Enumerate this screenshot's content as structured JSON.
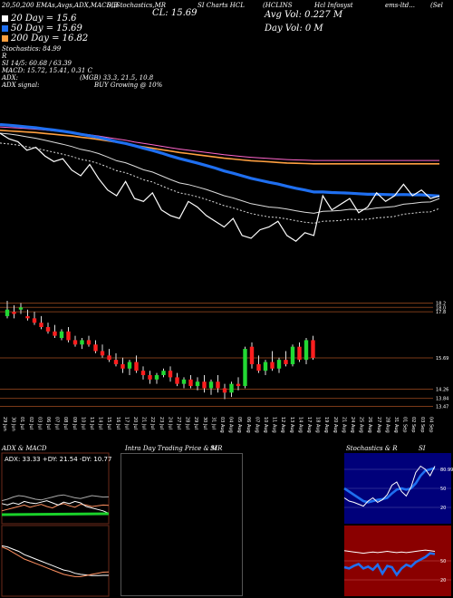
{
  "header": {
    "line1": [
      "20,50,200 EMAs,Avgs,ADX,MACD,B",
      "SI,Stochastics,MR",
      "CL: 15.69",
      "SI Charts HCL",
      "(HCLINS",
      "Avg Vol: 0.227 M",
      "Hcl Infosyst",
      "ems-ltd...",
      "(Sel"
    ],
    "ema20": "20  Day = 15.6",
    "ema50": "50  Day = 15.69",
    "ema200": "200  Day = 16.82",
    "day_vol": "Day Vol: 0  M",
    "stoch": "Stochastics: 84.99",
    "r_label": "R",
    "si": "SI 14/5: 60.68 / 63.39",
    "macd": "MACD: 15.72, 15.41, 0.31 C",
    "adx": "ADX:",
    "adx_vals": "(MGB) 33.3, 21.5, 10.8",
    "adx_signal": "ADX  signal:",
    "buy": "BUY Growing @ 10%"
  },
  "colors": {
    "ema20": "#ffffff",
    "ema50": "#1f6ff0",
    "ema200": "#ffa040",
    "up": "#22d933",
    "down": "#ff1e1e"
  },
  "price_chart": {
    "close": [
      17.9,
      17.7,
      17.6,
      17.3,
      17.4,
      17.1,
      16.9,
      17.0,
      16.6,
      16.4,
      16.8,
      16.3,
      15.9,
      15.7,
      16.2,
      15.6,
      15.5,
      15.8,
      15.2,
      15.0,
      14.9,
      15.5,
      15.3,
      15.0,
      14.8,
      14.6,
      14.9,
      14.3,
      14.2,
      14.5,
      14.6,
      14.8,
      14.3,
      14.1,
      14.4,
      14.3,
      15.7,
      15.2,
      15.4,
      15.6,
      15.1,
      15.3,
      15.8,
      15.5,
      15.7,
      16.1,
      15.7,
      15.9,
      15.6,
      15.69
    ],
    "ema20": [
      17.9,
      17.87,
      17.83,
      17.77,
      17.72,
      17.65,
      17.58,
      17.51,
      17.43,
      17.33,
      17.27,
      17.18,
      17.06,
      16.93,
      16.86,
      16.74,
      16.61,
      16.53,
      16.4,
      16.27,
      16.15,
      16.09,
      16.01,
      15.92,
      15.81,
      15.7,
      15.62,
      15.52,
      15.42,
      15.36,
      15.3,
      15.28,
      15.23,
      15.17,
      15.12,
      15.08,
      15.15,
      15.16,
      15.18,
      15.22,
      15.21,
      15.22,
      15.27,
      15.29,
      15.32,
      15.4,
      15.43,
      15.47,
      15.48,
      15.6
    ],
    "ema50": [
      18.2,
      18.18,
      18.15,
      18.12,
      18.09,
      18.05,
      18.01,
      17.97,
      17.92,
      17.86,
      17.81,
      17.75,
      17.68,
      17.6,
      17.54,
      17.46,
      17.37,
      17.29,
      17.2,
      17.1,
      17.01,
      16.93,
      16.85,
      16.76,
      16.67,
      16.57,
      16.49,
      16.4,
      16.31,
      16.24,
      16.17,
      16.11,
      16.03,
      15.96,
      15.9,
      15.83,
      15.83,
      15.81,
      15.8,
      15.79,
      15.77,
      15.75,
      15.75,
      15.74,
      15.73,
      15.74,
      15.73,
      15.73,
      15.71,
      15.69
    ],
    "ema200": [
      18.0,
      17.98,
      17.96,
      17.94,
      17.92,
      17.89,
      17.86,
      17.83,
      17.8,
      17.76,
      17.72,
      17.68,
      17.63,
      17.58,
      17.53,
      17.47,
      17.42,
      17.37,
      17.32,
      17.27,
      17.22,
      17.18,
      17.14,
      17.1,
      17.06,
      17.02,
      16.99,
      16.96,
      16.93,
      16.91,
      16.89,
      16.87,
      16.85,
      16.84,
      16.83,
      16.82,
      16.82,
      16.82,
      16.82,
      16.82,
      16.82,
      16.82,
      16.82,
      16.82,
      16.82,
      16.82,
      16.82,
      16.82,
      16.82,
      16.82
    ],
    "ylim": [
      13.5,
      18.6
    ]
  },
  "candles": {
    "tick_labels": [
      "18.2",
      "18.0",
      "17.8",
      "15.69",
      "14.26",
      "13.84",
      "13.47"
    ],
    "tick_values": [
      18.2,
      18.0,
      17.8,
      15.69,
      14.26,
      13.84,
      13.47
    ],
    "ylim": [
      13.2,
      18.8
    ],
    "ohlc": [
      [
        17.6,
        18.3,
        17.5,
        17.9
      ],
      [
        17.8,
        18.1,
        17.5,
        17.7
      ],
      [
        17.9,
        18.2,
        17.7,
        18.0
      ],
      [
        17.6,
        17.9,
        17.4,
        17.5
      ],
      [
        17.5,
        17.8,
        17.2,
        17.3
      ],
      [
        17.3,
        17.6,
        17.0,
        17.1
      ],
      [
        17.1,
        17.3,
        16.8,
        16.9
      ],
      [
        16.9,
        17.2,
        16.6,
        16.7
      ],
      [
        16.6,
        17.0,
        16.5,
        16.9
      ],
      [
        16.9,
        17.1,
        16.4,
        16.5
      ],
      [
        16.5,
        16.7,
        16.2,
        16.3
      ],
      [
        16.3,
        16.6,
        16.1,
        16.5
      ],
      [
        16.5,
        16.7,
        16.2,
        16.3
      ],
      [
        16.3,
        16.5,
        15.9,
        16.0
      ],
      [
        16.0,
        16.3,
        15.7,
        15.8
      ],
      [
        15.8,
        16.1,
        15.5,
        15.6
      ],
      [
        15.6,
        15.9,
        15.3,
        15.4
      ],
      [
        15.4,
        15.7,
        15.0,
        15.2
      ],
      [
        15.2,
        15.6,
        14.9,
        15.5
      ],
      [
        15.5,
        15.8,
        15.0,
        15.1
      ],
      [
        15.1,
        15.3,
        14.7,
        14.9
      ],
      [
        14.9,
        15.1,
        14.5,
        14.7
      ],
      [
        14.7,
        15.0,
        14.5,
        14.9
      ],
      [
        14.9,
        15.2,
        14.8,
        15.1
      ],
      [
        15.1,
        15.3,
        14.6,
        14.8
      ],
      [
        14.8,
        15.0,
        14.4,
        14.5
      ],
      [
        14.5,
        14.8,
        14.3,
        14.7
      ],
      [
        14.7,
        14.9,
        14.3,
        14.4
      ],
      [
        14.4,
        14.8,
        14.2,
        14.6
      ],
      [
        14.6,
        14.9,
        14.1,
        14.3
      ],
      [
        14.3,
        14.7,
        14.0,
        14.6
      ],
      [
        14.6,
        14.9,
        14.1,
        14.3
      ],
      [
        14.3,
        14.5,
        13.8,
        14.1
      ],
      [
        14.1,
        14.6,
        13.9,
        14.5
      ],
      [
        14.5,
        14.8,
        14.2,
        14.4
      ],
      [
        14.4,
        16.2,
        14.3,
        16.1
      ],
      [
        16.2,
        16.4,
        15.2,
        15.4
      ],
      [
        15.4,
        15.8,
        15.0,
        15.1
      ],
      [
        15.1,
        15.6,
        14.9,
        15.5
      ],
      [
        15.5,
        16.0,
        15.1,
        15.2
      ],
      [
        15.2,
        15.7,
        15.0,
        15.6
      ],
      [
        15.6,
        16.0,
        15.3,
        15.4
      ],
      [
        15.4,
        16.3,
        15.3,
        16.2
      ],
      [
        16.2,
        16.4,
        15.5,
        15.6
      ],
      [
        15.6,
        16.6,
        15.4,
        16.5
      ],
      [
        16.5,
        16.7,
        15.6,
        15.69
      ]
    ]
  },
  "dates": [
    "29 Jun",
    "30 Jun",
    "01 Jul",
    "02 Jul",
    "03 Jul",
    "06 Jul",
    "07 Jul",
    "08 Jul",
    "09 Jul",
    "10 Jul",
    "13 Jul",
    "14 Jul",
    "15 Jul",
    "16 Jul",
    "17 Jul",
    "20 Jul",
    "21 Jul",
    "22 Jul",
    "23 Jul",
    "24 Jul",
    "27 Jul",
    "28 Jul",
    "29 Jul",
    "30 Jul",
    "31 Jul",
    "03 Aug",
    "04 Aug",
    "05 Aug",
    "06 Aug",
    "07 Aug",
    "10 Aug",
    "11 Aug",
    "12 Aug",
    "13 Aug",
    "14 Aug",
    "17 Aug",
    "18 Aug",
    "19 Aug",
    "20 Aug",
    "21 Aug",
    "24 Aug",
    "25 Aug",
    "26 Aug",
    "27 Aug",
    "28 Aug",
    "31 Aug",
    "01 Sep",
    "02 Sep",
    "03 Sep",
    "04 Sep"
  ],
  "panels": {
    "adx": {
      "title": "ADX  & MACD",
      "vals": "ADX: 33.33  +DY: 21.54  -DY: 10.77",
      "adx_line": [
        28,
        30,
        33,
        35,
        34,
        32,
        30,
        29,
        31,
        33,
        35,
        36,
        34,
        32,
        31,
        33,
        35,
        34,
        33,
        33.3
      ],
      "pdi": [
        14,
        16,
        18,
        20,
        22,
        19,
        21,
        23,
        20,
        18,
        22,
        24,
        21,
        19,
        23,
        22,
        20,
        21,
        22,
        21.5
      ],
      "mdi": [
        24,
        22,
        25,
        23,
        27,
        25,
        24,
        26,
        28,
        25,
        22,
        26,
        24,
        27,
        25,
        20,
        18,
        16,
        14,
        10.8
      ]
    },
    "macd": {
      "line": [
        18,
        17.8,
        17.5,
        17.2,
        16.9,
        16.7,
        16.5,
        16.3,
        16.1,
        15.9,
        15.7,
        15.5,
        15.4,
        15.3,
        15.3,
        15.4,
        15.5,
        15.6,
        15.7,
        15.72
      ],
      "signal": [
        18.1,
        18.0,
        17.8,
        17.6,
        17.3,
        17.1,
        16.9,
        16.7,
        16.5,
        16.3,
        16.1,
        15.9,
        15.8,
        15.6,
        15.5,
        15.45,
        15.4,
        15.4,
        15.41,
        15.41
      ]
    },
    "intraday": {
      "title_left": "Intra  Day Trading Price  & MR",
      "title_right": "SI"
    },
    "stoch": {
      "title_left": "Stochastics & R",
      "title_right": "SI",
      "labels": [
        "80.99",
        "50",
        "20"
      ],
      "k": [
        35,
        30,
        28,
        25,
        22,
        30,
        35,
        28,
        32,
        40,
        55,
        60,
        45,
        38,
        52,
        75,
        85,
        80,
        70,
        85
      ],
      "d": [
        50,
        45,
        40,
        35,
        30,
        28,
        30,
        32,
        33,
        35,
        42,
        48,
        50,
        48,
        50,
        58,
        70,
        78,
        80,
        82
      ]
    },
    "rsi": {
      "labels": [
        "50",
        "20"
      ],
      "line": [
        66,
        65,
        64,
        63,
        62,
        63,
        64,
        63,
        64,
        65,
        64,
        63,
        64,
        63,
        64,
        65,
        66,
        67,
        66,
        65
      ],
      "blue": [
        40,
        38,
        42,
        45,
        38,
        41,
        36,
        44,
        30,
        42,
        40,
        28,
        38,
        44,
        41,
        48,
        52,
        56,
        62,
        60.68
      ]
    }
  }
}
